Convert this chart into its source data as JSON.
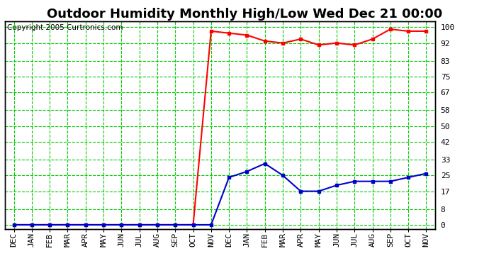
{
  "title": "Outdoor Humidity Monthly High/Low Wed Dec 21 00:00",
  "copyright": "Copyright 2005 Curtronics.com",
  "x_labels": [
    "DEC",
    "JAN",
    "FEB",
    "MAR",
    "APR",
    "MAY",
    "JUN",
    "JUL",
    "AUG",
    "SEP",
    "OCT",
    "NOV",
    "DEC",
    "JAN",
    "FEB",
    "MAR",
    "APR",
    "MAY",
    "JUN",
    "JUL",
    "AUG",
    "SEP",
    "OCT",
    "NOV"
  ],
  "high_values": [
    0,
    0,
    0,
    0,
    0,
    0,
    0,
    0,
    0,
    0,
    0,
    98,
    97,
    96,
    93,
    92,
    94,
    91,
    92,
    91,
    94,
    99,
    98,
    98
  ],
  "low_values": [
    0,
    0,
    0,
    0,
    0,
    0,
    0,
    0,
    0,
    0,
    0,
    0,
    24,
    27,
    31,
    25,
    17,
    17,
    20,
    22,
    22,
    22,
    24,
    26
  ],
  "yticks": [
    0,
    8,
    17,
    25,
    33,
    42,
    50,
    58,
    67,
    75,
    83,
    92,
    100
  ],
  "ymax": 103,
  "ymin": -2,
  "bg_color": "#ffffff",
  "plot_bg_color": "#ffffff",
  "grid_color": "#00cc00",
  "high_color": "#ff0000",
  "low_color": "#0000cc",
  "title_fontsize": 13,
  "tick_fontsize": 8,
  "copyright_fontsize": 7.5
}
